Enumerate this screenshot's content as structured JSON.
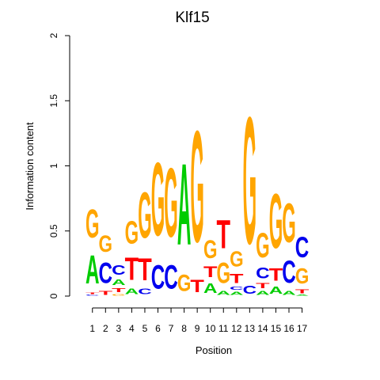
{
  "chart_data": {
    "type": "sequence-logo",
    "title": "Klf15",
    "xlabel": "Position",
    "ylabel": "Information content",
    "ylim": [
      0,
      2
    ],
    "y_ticks": [
      "0",
      "0.5",
      "1",
      "1.5",
      "2"
    ],
    "x_ticks": [
      "1",
      "2",
      "3",
      "4",
      "5",
      "6",
      "7",
      "8",
      "9",
      "10",
      "11",
      "12",
      "13",
      "14",
      "15",
      "16",
      "17"
    ],
    "base_colors": {
      "A": "#00cc00",
      "C": "#0000ee",
      "G": "#ffa500",
      "T": "#ff0000"
    },
    "positions": [
      {
        "pos": 1,
        "letters": [
          {
            "base": "C",
            "bits": 0.01
          },
          {
            "base": "T",
            "bits": 0.02
          },
          {
            "base": "A",
            "bits": 0.35
          },
          {
            "base": "G",
            "bits": 0.35
          }
        ]
      },
      {
        "pos": 2,
        "letters": [
          {
            "base": "T",
            "bits": 0.05
          },
          {
            "base": "C",
            "bits": 0.25
          },
          {
            "base": "G",
            "bits": 0.2
          }
        ]
      },
      {
        "pos": 3,
        "letters": [
          {
            "base": "G",
            "bits": 0.02
          },
          {
            "base": "T",
            "bits": 0.05
          },
          {
            "base": "A",
            "bits": 0.07
          },
          {
            "base": "C",
            "bits": 0.12
          }
        ]
      },
      {
        "pos": 4,
        "letters": [
          {
            "base": "A",
            "bits": 0.07
          },
          {
            "base": "T",
            "bits": 0.28
          },
          {
            "base": "G",
            "bits": 0.28
          }
        ]
      },
      {
        "pos": 5,
        "letters": [
          {
            "base": "C",
            "bits": 0.07
          },
          {
            "base": "T",
            "bits": 0.27
          },
          {
            "base": "G",
            "bits": 0.56
          }
        ]
      },
      {
        "pos": 6,
        "letters": [
          {
            "base": "C",
            "bits": 0.29
          },
          {
            "base": "G",
            "bits": 0.9
          }
        ]
      },
      {
        "pos": 7,
        "letters": [
          {
            "base": "C",
            "bits": 0.29
          },
          {
            "base": "G",
            "bits": 0.85
          }
        ]
      },
      {
        "pos": 8,
        "letters": [
          {
            "base": "G",
            "bits": 0.2
          },
          {
            "base": "A",
            "bits": 1.0
          }
        ]
      },
      {
        "pos": 9,
        "letters": [
          {
            "base": "T",
            "bits": 0.15
          },
          {
            "base": "G",
            "bits": 1.37
          }
        ]
      },
      {
        "pos": 10,
        "letters": [
          {
            "base": "A",
            "bits": 0.12
          },
          {
            "base": "T",
            "bits": 0.13
          },
          {
            "base": "G",
            "bits": 0.22
          }
        ]
      },
      {
        "pos": 11,
        "letters": [
          {
            "base": "A",
            "bits": 0.05
          },
          {
            "base": "G",
            "bits": 0.25
          },
          {
            "base": "T",
            "bits": 0.35
          }
        ]
      },
      {
        "pos": 12,
        "letters": [
          {
            "base": "A",
            "bits": 0.04
          },
          {
            "base": "C",
            "bits": 0.04
          },
          {
            "base": "T",
            "bits": 0.11
          },
          {
            "base": "G",
            "bits": 0.19
          }
        ]
      },
      {
        "pos": 13,
        "letters": [
          {
            "base": "C",
            "bits": 0.1
          },
          {
            "base": "G",
            "bits": 1.56
          }
        ]
      },
      {
        "pos": 14,
        "letters": [
          {
            "base": "A",
            "bits": 0.05
          },
          {
            "base": "T",
            "bits": 0.06
          },
          {
            "base": "C",
            "bits": 0.13
          },
          {
            "base": "G",
            "bits": 0.3
          }
        ]
      },
      {
        "pos": 15,
        "letters": [
          {
            "base": "A",
            "bits": 0.09
          },
          {
            "base": "T",
            "bits": 0.15
          },
          {
            "base": "G",
            "bits": 0.67
          }
        ]
      },
      {
        "pos": 16,
        "letters": [
          {
            "base": "A",
            "bits": 0.05
          },
          {
            "base": "C",
            "bits": 0.27
          },
          {
            "base": "G",
            "bits": 0.48
          }
        ]
      },
      {
        "pos": 17,
        "letters": [
          {
            "base": "A",
            "bits": 0.01
          },
          {
            "base": "T",
            "bits": 0.05
          },
          {
            "base": "G",
            "bits": 0.19
          },
          {
            "base": "C",
            "bits": 0.25
          }
        ]
      }
    ]
  }
}
